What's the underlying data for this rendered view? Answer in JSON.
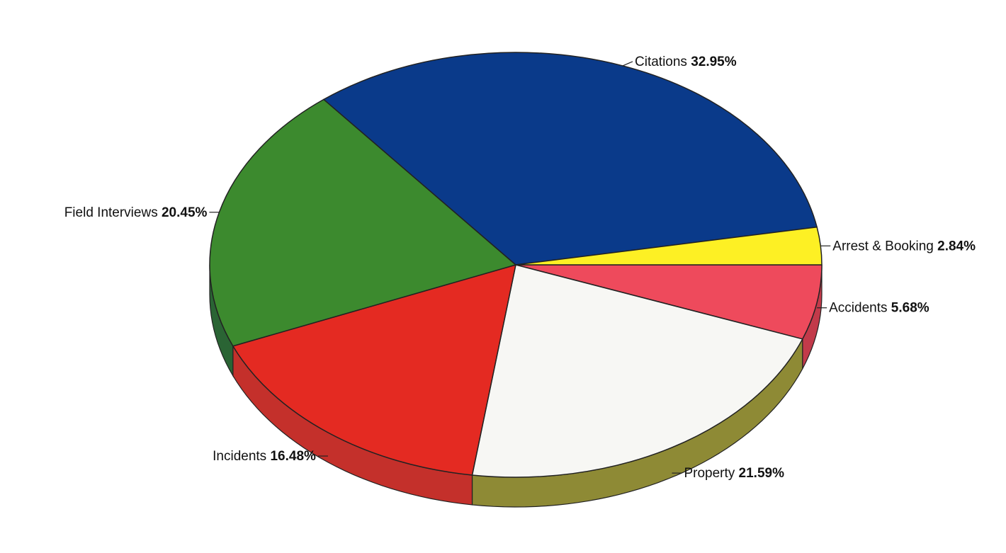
{
  "chart_data": {
    "type": "pie",
    "style": "3d",
    "slices": [
      {
        "name": "Accidents",
        "value": 5.68,
        "label": "5.68%",
        "color": "#ee4a5c",
        "side": "#c23a4a",
        "label_side": "right"
      },
      {
        "name": "Property",
        "value": 21.59,
        "label": "21.59%",
        "color": "#f7f7f4",
        "side": "#8e8a35",
        "label_side": "right"
      },
      {
        "name": "Incidents",
        "value": 16.48,
        "label": "16.48%",
        "color": "#e42a22",
        "side": "#c4302b",
        "label_side": "left"
      },
      {
        "name": "Field Interviews",
        "value": 20.45,
        "label": "20.45%",
        "color": "#3c8a2e",
        "side": "#2a6434",
        "label_side": "left"
      },
      {
        "name": "Citations",
        "value": 32.95,
        "label": "32.95%",
        "color": "#0a3a8a",
        "side": "#07295f",
        "label_side": "right"
      },
      {
        "name": "Arrest & Booking",
        "value": 2.84,
        "label": "2.84%",
        "color": "#fdf024",
        "side": "#c9bd17",
        "label_side": "right"
      }
    ],
    "start_angle_deg": 0,
    "direction": "clockwise",
    "legend": "none"
  }
}
